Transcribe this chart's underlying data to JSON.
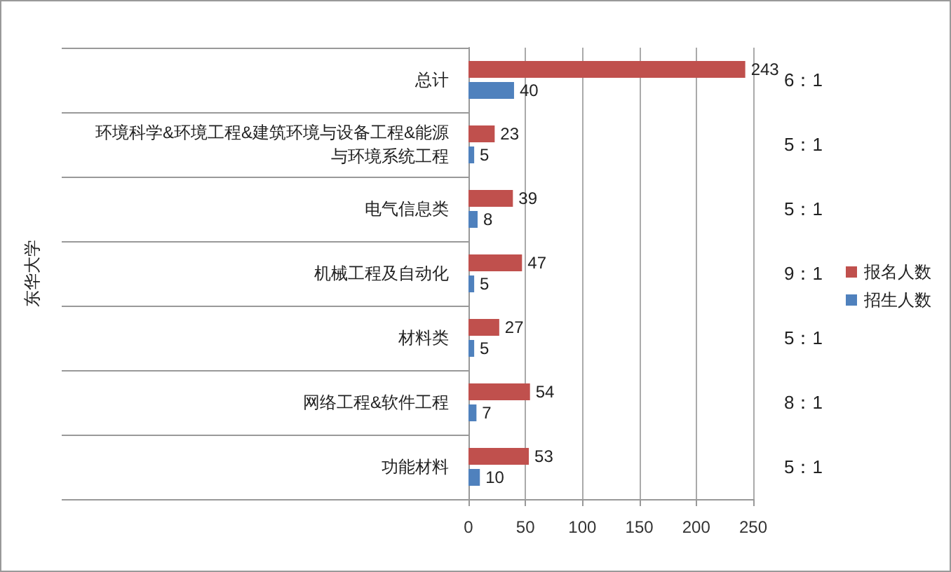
{
  "chart_data": {
    "type": "bar",
    "orientation": "horizontal",
    "ylabel": "东华大学",
    "categories": [
      "总计",
      "环境科学&环境工程&建筑环境与设备工程&能源与环境系统工程",
      "电气信息类",
      "机械工程及自动化",
      "材料类",
      "网络工程&软件工程",
      "功能材料"
    ],
    "series": [
      {
        "name": "报名人数",
        "color": "#c0504d",
        "values": [
          243,
          23,
          39,
          47,
          27,
          54,
          53
        ]
      },
      {
        "name": "招生人数",
        "color": "#4f81bd",
        "values": [
          40,
          5,
          8,
          5,
          5,
          7,
          10
        ]
      }
    ],
    "xlim": [
      0,
      250
    ],
    "xticks": [
      0,
      50,
      100,
      150,
      200,
      250
    ],
    "grid": "x",
    "legend": "right",
    "data_labels": true,
    "annotations": [
      "6：1",
      "5：1",
      "5：1",
      "9：1",
      "5：1",
      "8：1",
      "5：1"
    ]
  }
}
